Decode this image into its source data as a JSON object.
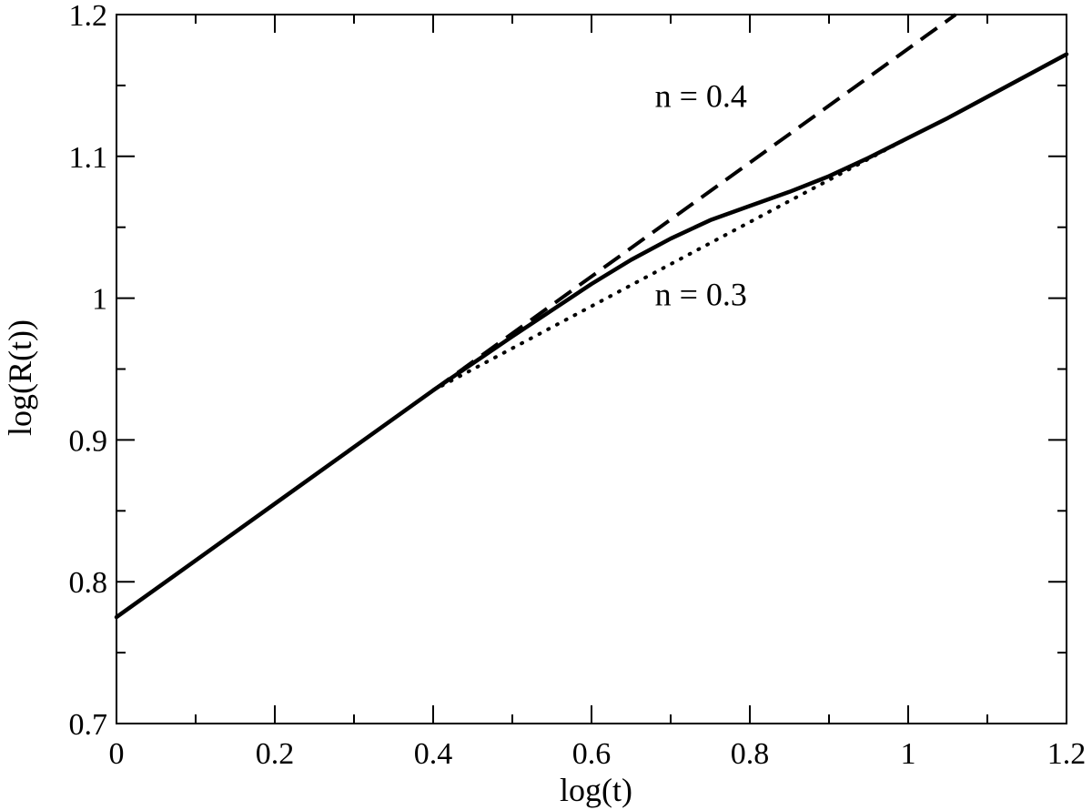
{
  "chart_data": {
    "type": "line",
    "xlabel": "log(t)",
    "ylabel": "log(R(t))",
    "xlim": [
      0,
      1.2
    ],
    "ylim": [
      0.7,
      1.2
    ],
    "x_ticks": [
      0,
      0.2,
      0.4,
      0.6,
      0.8,
      1.0,
      1.2
    ],
    "x_tick_labels": [
      "0",
      "0.2",
      "0.4",
      "0.6",
      "0.8",
      "1",
      "1.2"
    ],
    "y_ticks": [
      0.7,
      0.8,
      0.9,
      1.0,
      1.1,
      1.2
    ],
    "y_tick_labels": [
      "0.7",
      "0.8",
      "0.9",
      "1",
      "1.1",
      "1.2"
    ],
    "grid": false,
    "series": [
      {
        "style": "solid",
        "x": [
          0,
          0.1,
          0.2,
          0.3,
          0.4,
          0.5,
          0.6,
          0.65,
          0.7,
          0.75,
          0.8,
          0.85,
          0.9,
          0.95,
          1.0,
          1.05,
          1.1,
          1.15,
          1.2
        ],
        "y": [
          0.775,
          0.815,
          0.855,
          0.895,
          0.935,
          0.973,
          1.01,
          1.027,
          1.042,
          1.055,
          1.065,
          1.075,
          1.086,
          1.099,
          1.113,
          1.127,
          1.142,
          1.157,
          1.172
        ]
      },
      {
        "style": "dashed",
        "x": [
          0.4,
          1.06
        ],
        "y": [
          0.935,
          1.2
        ]
      },
      {
        "style": "dotted",
        "x": [
          0.4,
          1.0
        ],
        "y": [
          0.935,
          1.113
        ]
      }
    ],
    "annotations": [
      {
        "text": "n = 0.4",
        "x": 0.68,
        "y": 1.135
      },
      {
        "text": "n = 0.3",
        "x": 0.68,
        "y": 0.995
      }
    ]
  }
}
